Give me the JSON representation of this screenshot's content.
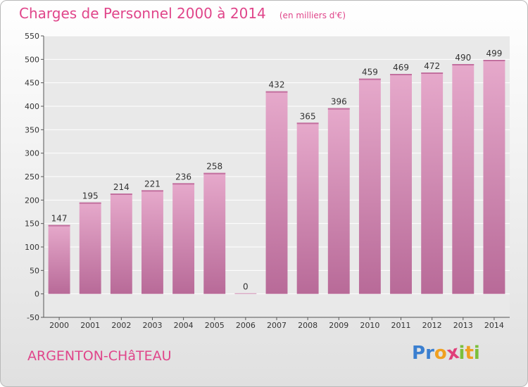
{
  "chart_data": {
    "type": "bar",
    "title": "Charges de Personnel 2000 à 2014",
    "unit_note": "(en milliers d'€)",
    "categories": [
      "2000",
      "2001",
      "2002",
      "2003",
      "2004",
      "2005",
      "2006",
      "2007",
      "2008",
      "2009",
      "2010",
      "2011",
      "2012",
      "2013",
      "2014"
    ],
    "values": [
      147,
      195,
      214,
      221,
      236,
      258,
      0,
      432,
      365,
      396,
      459,
      469,
      472,
      490,
      499
    ],
    "value_labels": [
      "147",
      "195",
      "214",
      "221",
      "236",
      "258",
      "0",
      "432",
      "365",
      "396",
      "459",
      "469",
      "472",
      "490",
      "499"
    ],
    "ylim": [
      -50,
      550
    ],
    "yticks": [
      -50,
      0,
      50,
      100,
      150,
      200,
      250,
      300,
      350,
      400,
      450,
      500,
      550
    ],
    "ytick_labels": [
      "-50",
      "0",
      "50",
      "100",
      "150",
      "200",
      "250",
      "300",
      "350",
      "400",
      "450",
      "500",
      "550"
    ],
    "grid": true,
    "bar_color": "#d98ab5",
    "legend": "none",
    "xlabel": "",
    "ylabel": ""
  },
  "footer": {
    "place": "ARGENTON-CHâTEAU",
    "logo_text": "Proxiti",
    "logo_letters": [
      "P",
      "r",
      "o",
      "x",
      "i",
      "t",
      "i"
    ],
    "logo_colors": [
      "#3a7fd0",
      "#3a7fd0",
      "#f0a020",
      "#e0407a",
      "#7cbf3a",
      "#f0a020",
      "#7cbf3a"
    ]
  }
}
